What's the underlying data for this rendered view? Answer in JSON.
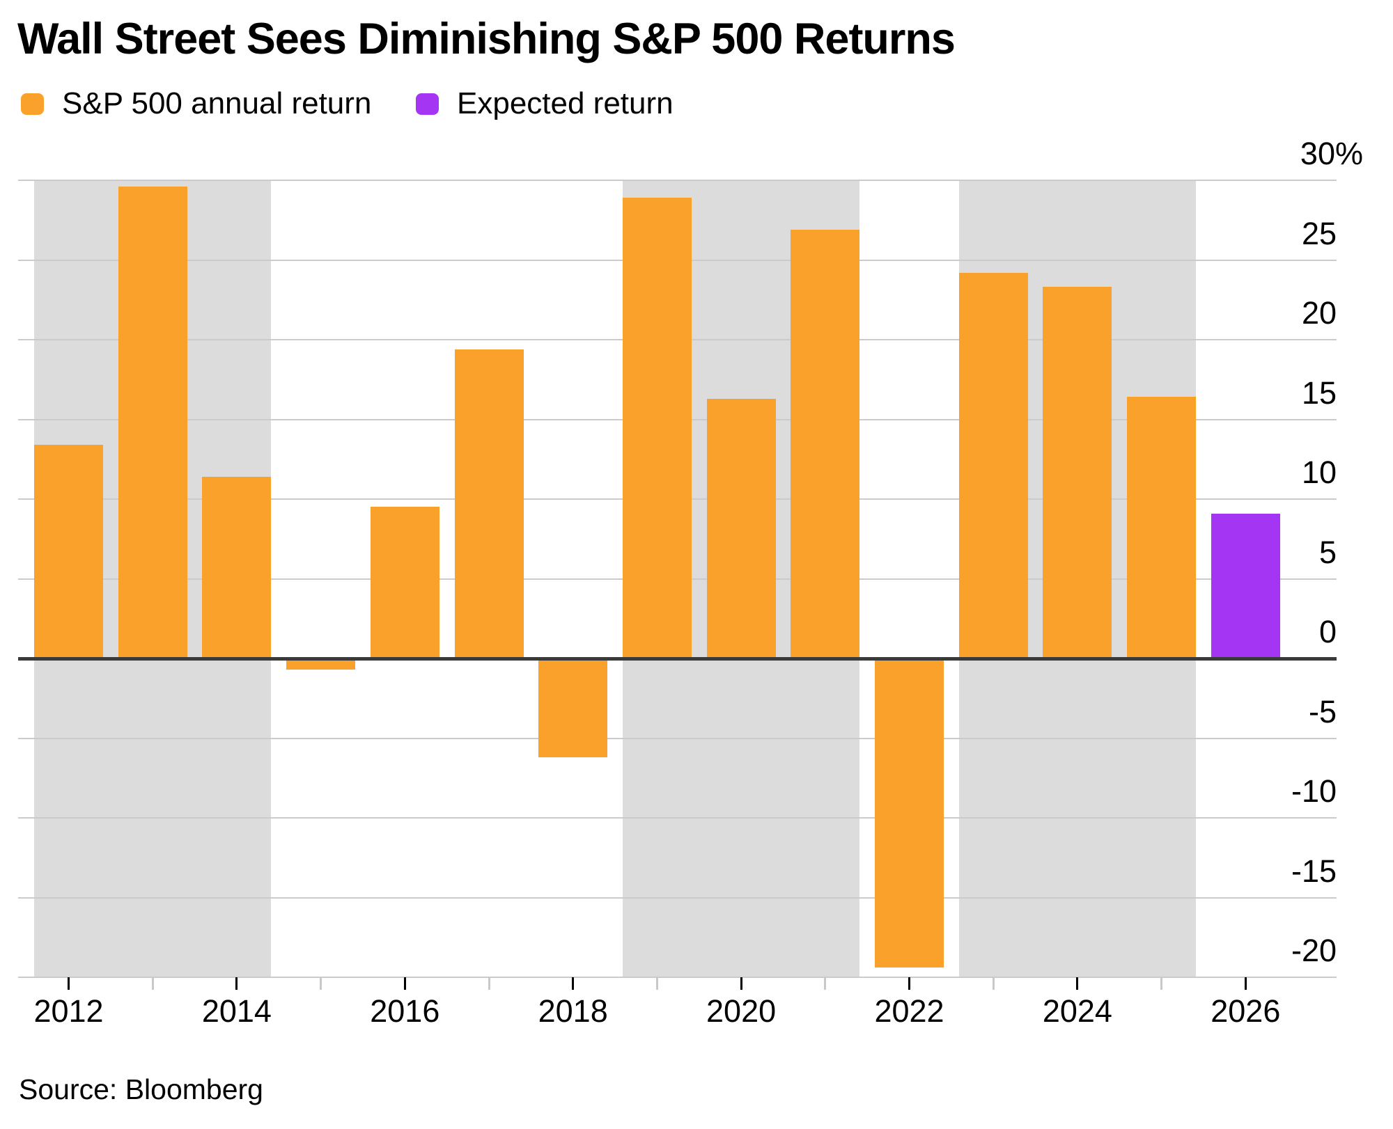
{
  "title": "Wall Street Sees Diminishing S&P 500 Returns",
  "legend": [
    {
      "label": "S&P 500 annual return",
      "color": "#FAA12B"
    },
    {
      "label": "Expected return",
      "color": "#A435F2"
    }
  ],
  "source": "Source: Bloomberg",
  "chart_data": {
    "type": "bar",
    "title": "Wall Street Sees Diminishing S&P 500 Returns",
    "unit": "%",
    "categories": [
      "2012",
      "2013",
      "2014",
      "2015",
      "2016",
      "2017",
      "2018",
      "2019",
      "2020",
      "2021",
      "2022",
      "2023",
      "2024",
      "2025",
      "2026"
    ],
    "series": [
      {
        "name": "S&P 500 annual return",
        "color": "#FAA12B",
        "values": [
          13.4,
          29.6,
          11.4,
          -0.7,
          9.5,
          19.4,
          -6.2,
          28.9,
          16.3,
          26.9,
          -19.4,
          24.2,
          23.3,
          16.4,
          null
        ]
      },
      {
        "name": "Expected return",
        "color": "#A435F2",
        "values": [
          null,
          null,
          null,
          null,
          null,
          null,
          null,
          null,
          null,
          null,
          null,
          null,
          null,
          null,
          9.1
        ]
      }
    ],
    "ylim": [
      -20,
      30
    ],
    "y_tick_interval": 5,
    "y_tick_labels": [
      "30%",
      "25",
      "20",
      "15",
      "10",
      "5",
      "0",
      "-5",
      "-10",
      "-15",
      "-20"
    ],
    "x_tick_years": [
      "2012",
      "2013",
      "2014",
      "2015",
      "2016",
      "2017",
      "2018",
      "2019",
      "2020",
      "2021",
      "2022",
      "2023",
      "2024",
      "2025",
      "2026"
    ],
    "x_tick_labels_shown": [
      "2012",
      "2014",
      "2016",
      "2018",
      "2020",
      "2022",
      "2024",
      "2026"
    ],
    "grid": true,
    "zero_line": true,
    "legend_position": "top-left",
    "background_bands": {
      "color": "#dcdcdc",
      "year_ranges": [
        [
          "2012",
          "2014"
        ],
        [
          "2019",
          "2021"
        ],
        [
          "2023",
          "2025"
        ]
      ]
    }
  }
}
